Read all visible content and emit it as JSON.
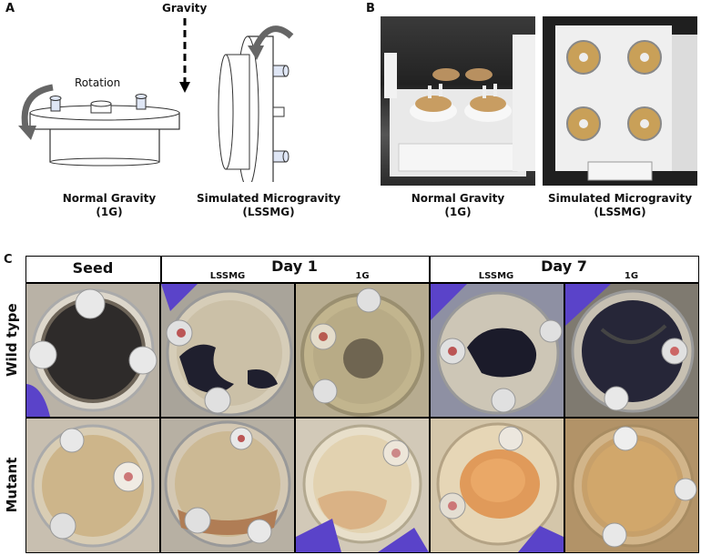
{
  "panels": {
    "a": {
      "label": "A",
      "gravity_label": "Gravity",
      "rotation_label": "Rotation",
      "normal_caption": [
        "Normal Gravity",
        "(1G)"
      ],
      "sim_caption": [
        "Simulated Microgravity",
        "(LSSMG)"
      ]
    },
    "b": {
      "label": "B",
      "normal_caption": [
        "Normal Gravity",
        "(1G)"
      ],
      "sim_caption": [
        "Simulated Microgravity",
        "(LSSMG)"
      ]
    },
    "c": {
      "label": "C",
      "col_seed": "Seed",
      "col_day1": "Day 1",
      "col_day7": "Day 7",
      "sub_lssmg": "LSSMG",
      "sub_1g": "1G",
      "row_wild": "Wild type",
      "row_mutant": "Mutant"
    }
  },
  "colors": {
    "grid_line": "#000000",
    "glove": "#5a43c9",
    "plate_amber": "#c9a464",
    "cells_dark": "#1c1c2a",
    "cells_orange": "#e09a5a"
  }
}
